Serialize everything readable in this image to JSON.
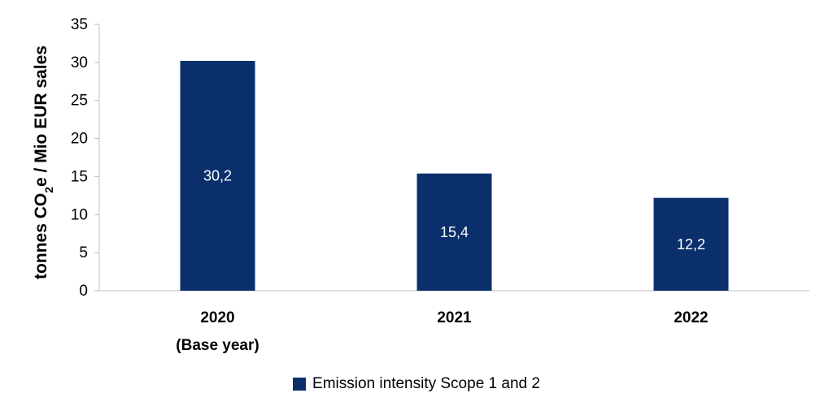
{
  "chart_data": {
    "type": "bar",
    "categories": [
      "2020",
      "2021",
      "2022"
    ],
    "category_sublabels": [
      "(Base year)",
      "",
      ""
    ],
    "series": [
      {
        "name": "Emission intensity Scope 1 and 2",
        "values": [
          30.2,
          15.4,
          12.2
        ],
        "data_labels": [
          "30,2",
          "15,4",
          "12,2"
        ],
        "color": "#0a2f6b"
      }
    ],
    "ylabel": {
      "prefix": "tonnes CO",
      "subscript": "2",
      "suffix": "e / Mio EUR sales"
    },
    "ylim": [
      0,
      35
    ],
    "yticks": [
      0,
      5,
      10,
      15,
      20,
      25,
      30,
      35
    ],
    "grid": false,
    "legend_position": "bottom"
  }
}
